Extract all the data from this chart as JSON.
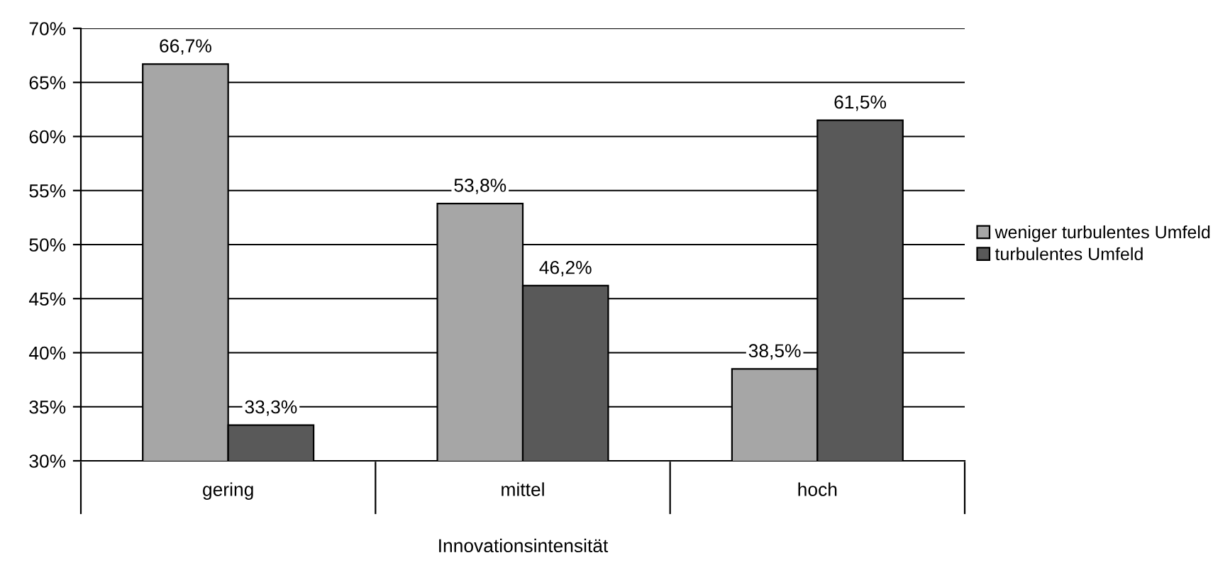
{
  "chart_data": {
    "type": "bar",
    "xlabel": "Innovationsintensität",
    "categories": [
      "gering",
      "mittel",
      "hoch"
    ],
    "series": [
      {
        "name": "weniger turbulentes Umfeld",
        "color": "#a6a6a6",
        "values": [
          66.7,
          53.8,
          38.5
        ],
        "value_labels": [
          "66,7%",
          "53,8%",
          "38,5%"
        ]
      },
      {
        "name": "turbulentes Umfeld",
        "color": "#595959",
        "values": [
          33.3,
          46.2,
          61.5
        ],
        "value_labels": [
          "33,3%",
          "46,2%",
          "61,5%"
        ]
      }
    ],
    "ylim": [
      30,
      70
    ],
    "yticks": [
      {
        "value": 30,
        "label": "30%"
      },
      {
        "value": 35,
        "label": "35%"
      },
      {
        "value": 40,
        "label": "40%"
      },
      {
        "value": 45,
        "label": "45%"
      },
      {
        "value": 50,
        "label": "50%"
      },
      {
        "value": 55,
        "label": "55%"
      },
      {
        "value": 60,
        "label": "60%"
      },
      {
        "value": 65,
        "label": "65%"
      },
      {
        "value": 70,
        "label": "70%"
      }
    ],
    "grid": "y",
    "legend": "right"
  }
}
